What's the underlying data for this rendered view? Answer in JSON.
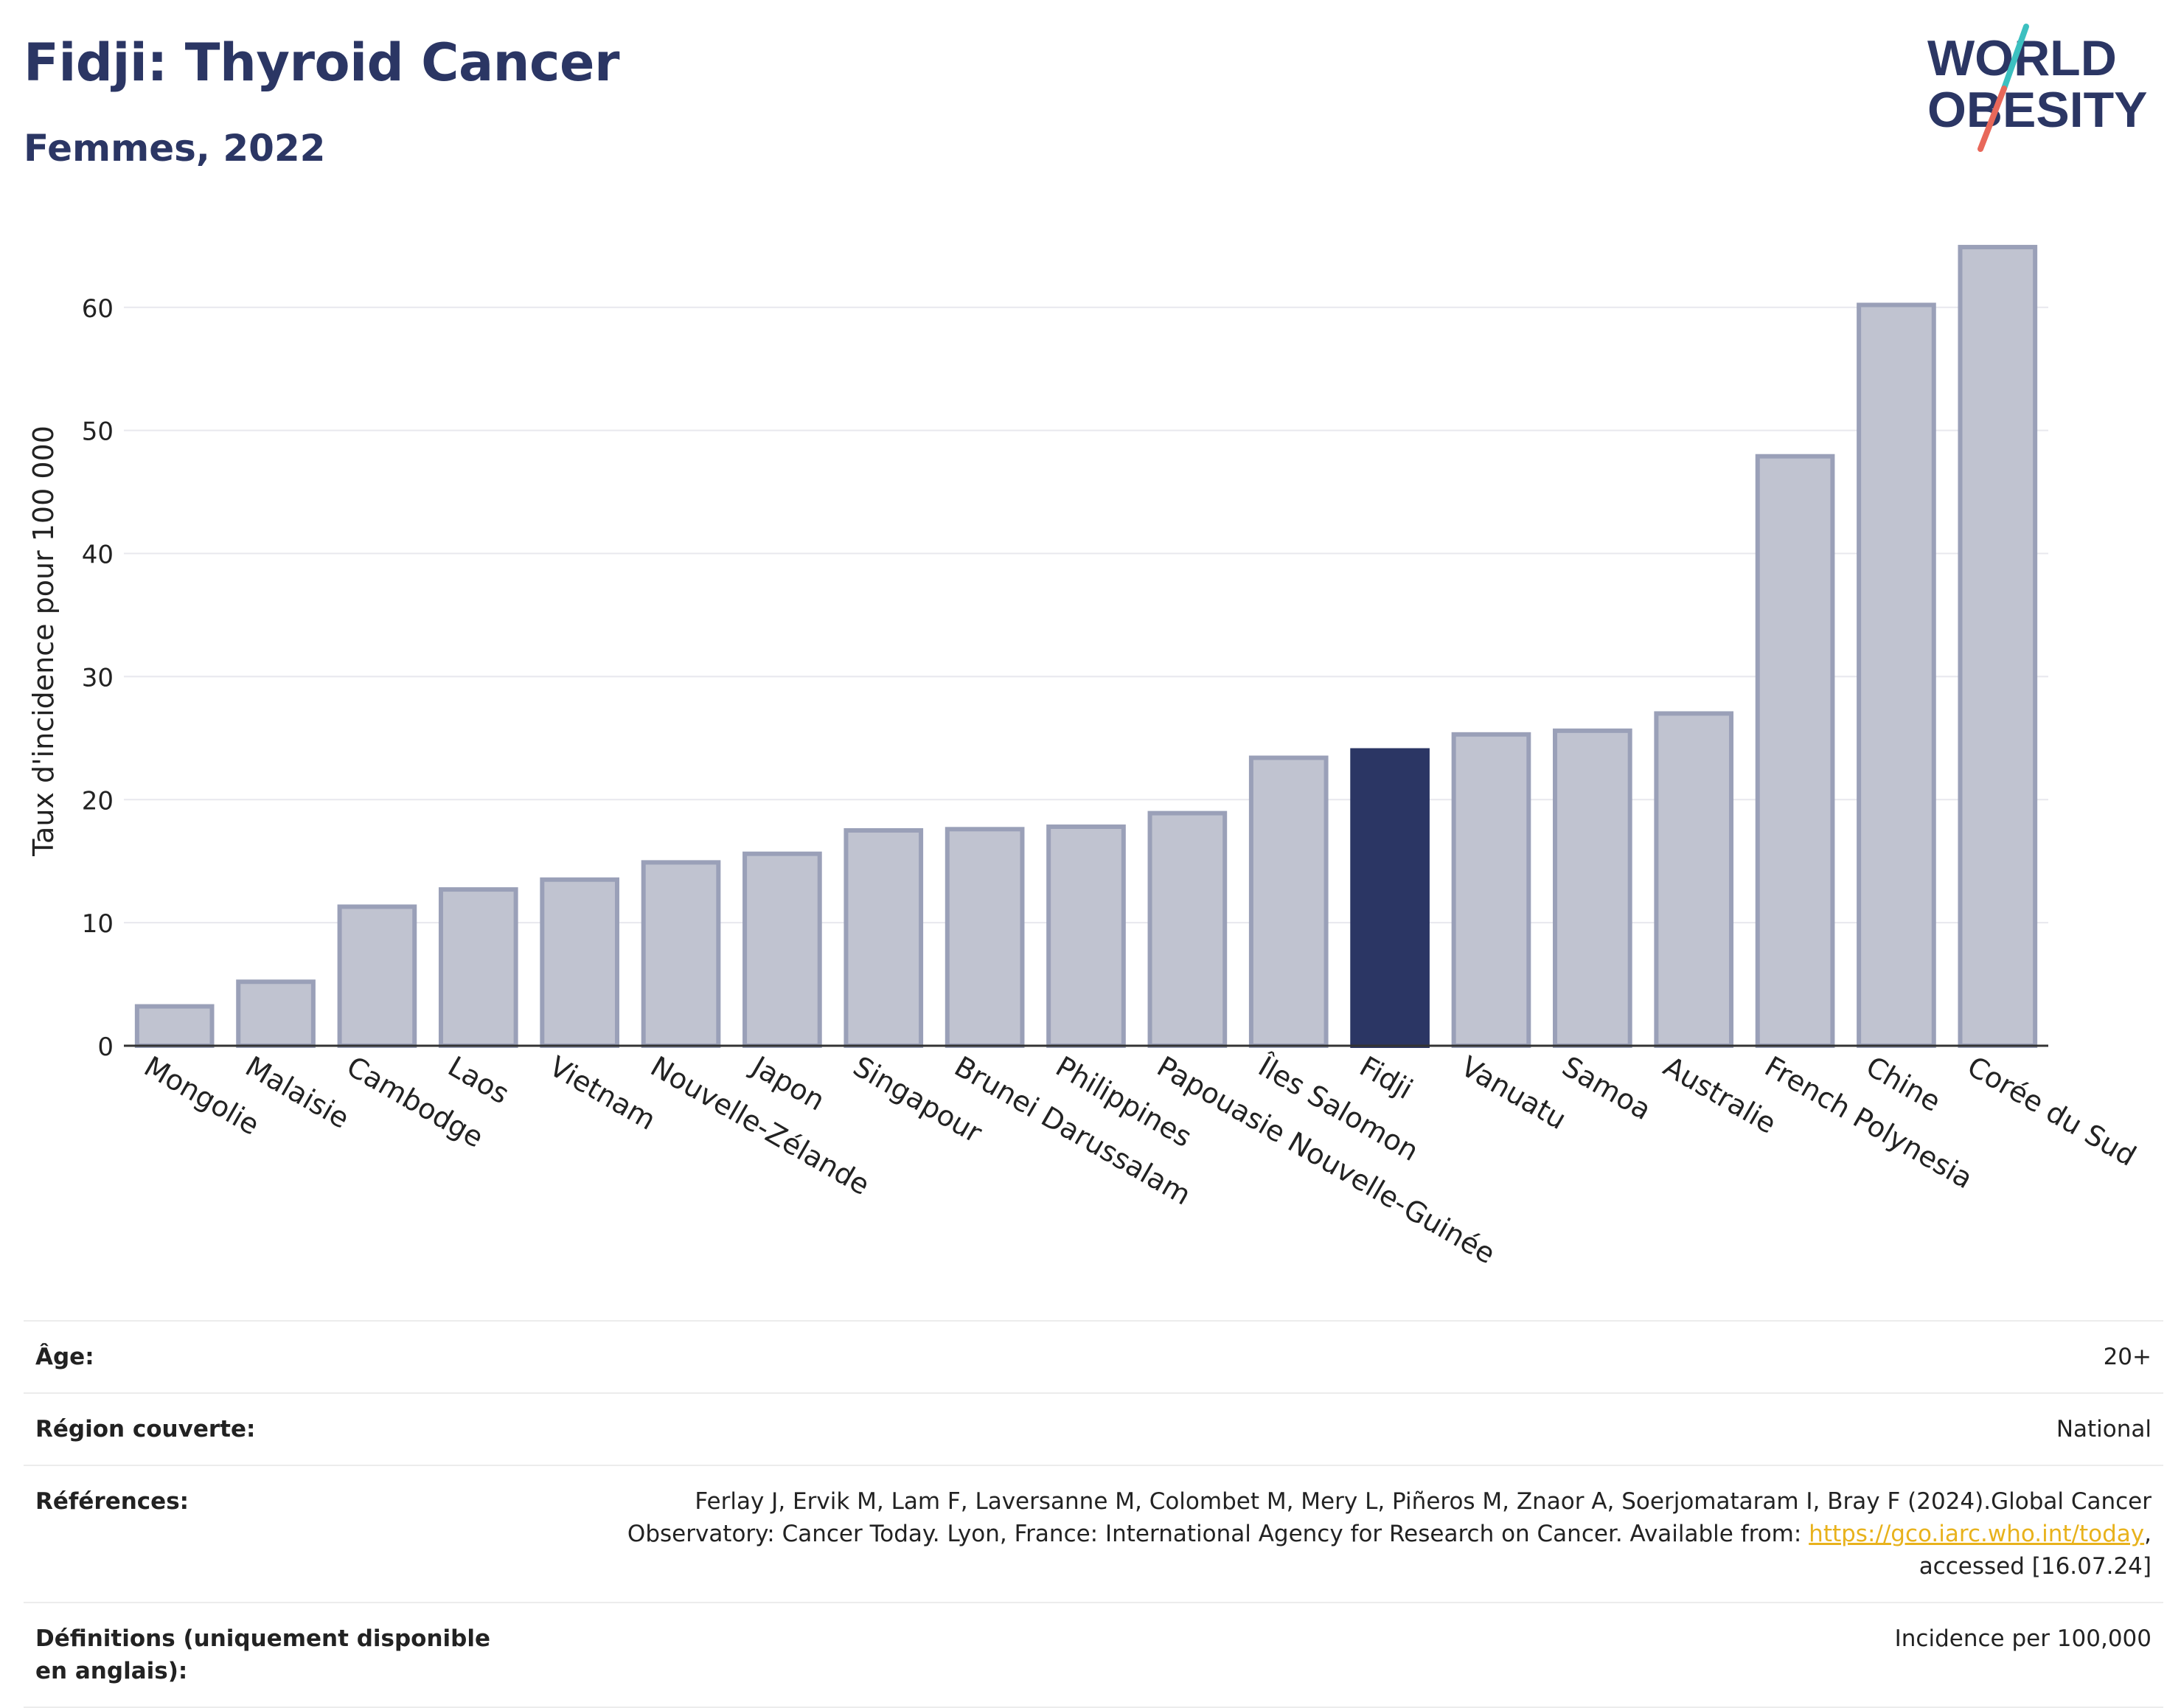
{
  "header": {
    "title": "Fidji: Thyroid Cancer",
    "subtitle": "Femmes, 2022"
  },
  "logo": {
    "line1": "WORLD",
    "line2": "OBESITY",
    "text_color": "#2b3664",
    "slash_colors": [
      "#3cc0c0",
      "#e8685a"
    ]
  },
  "colors": {
    "bar": "#2b3664",
    "bar_muted_fill": "#c0c3d0",
    "bar_muted_stroke": "#9aa0b8",
    "grid": "#e8e8ee",
    "axis": "#333333"
  },
  "chart_data": {
    "type": "bar",
    "categories": [
      "Mongolie",
      "Malaisie",
      "Cambodge",
      "Laos",
      "Vietnam",
      "Nouvelle-Zélande",
      "Japon",
      "Singapour",
      "Brunei Darussalam",
      "Philippines",
      "Papouasie Nouvelle-Guinée",
      "Îles Salomon",
      "Fidji",
      "Vanuatu",
      "Samoa",
      "Australie",
      "French Polynesia",
      "Chine",
      "Corée du Sud"
    ],
    "values": [
      3.2,
      5.2,
      11.3,
      12.7,
      13.5,
      14.9,
      15.6,
      17.5,
      17.6,
      17.8,
      18.9,
      23.4,
      24.0,
      25.3,
      25.6,
      27.0,
      47.9,
      60.2,
      64.9
    ],
    "highlight": "Fidji",
    "xlabel": "",
    "ylabel": "Taux d'incidence pour 100 000",
    "ylim": [
      0,
      67
    ],
    "yticks": [
      0,
      10,
      20,
      30,
      40,
      50,
      60
    ],
    "grid": true
  },
  "info": {
    "rows": [
      {
        "label": "Âge:",
        "value": "20+"
      },
      {
        "label": "Région couverte:",
        "value": "National"
      },
      {
        "label": "Références:",
        "value": "Ferlay J, Ervik M, Lam F, Laversanne M, Colombet M, Mery L, Piñeros M, Znaor A, Soerjomataram I, Bray F (2024).Global Cancer Observatory: Cancer Today. Lyon, France: International Agency for Research on Cancer. Available from:",
        "link": "https://gco.iarc.who.int/today",
        "suffix": ", accessed [16.07.24]"
      },
      {
        "label": "Définitions (uniquement disponible en anglais):",
        "value": "Incidence per 100,000"
      }
    ]
  }
}
